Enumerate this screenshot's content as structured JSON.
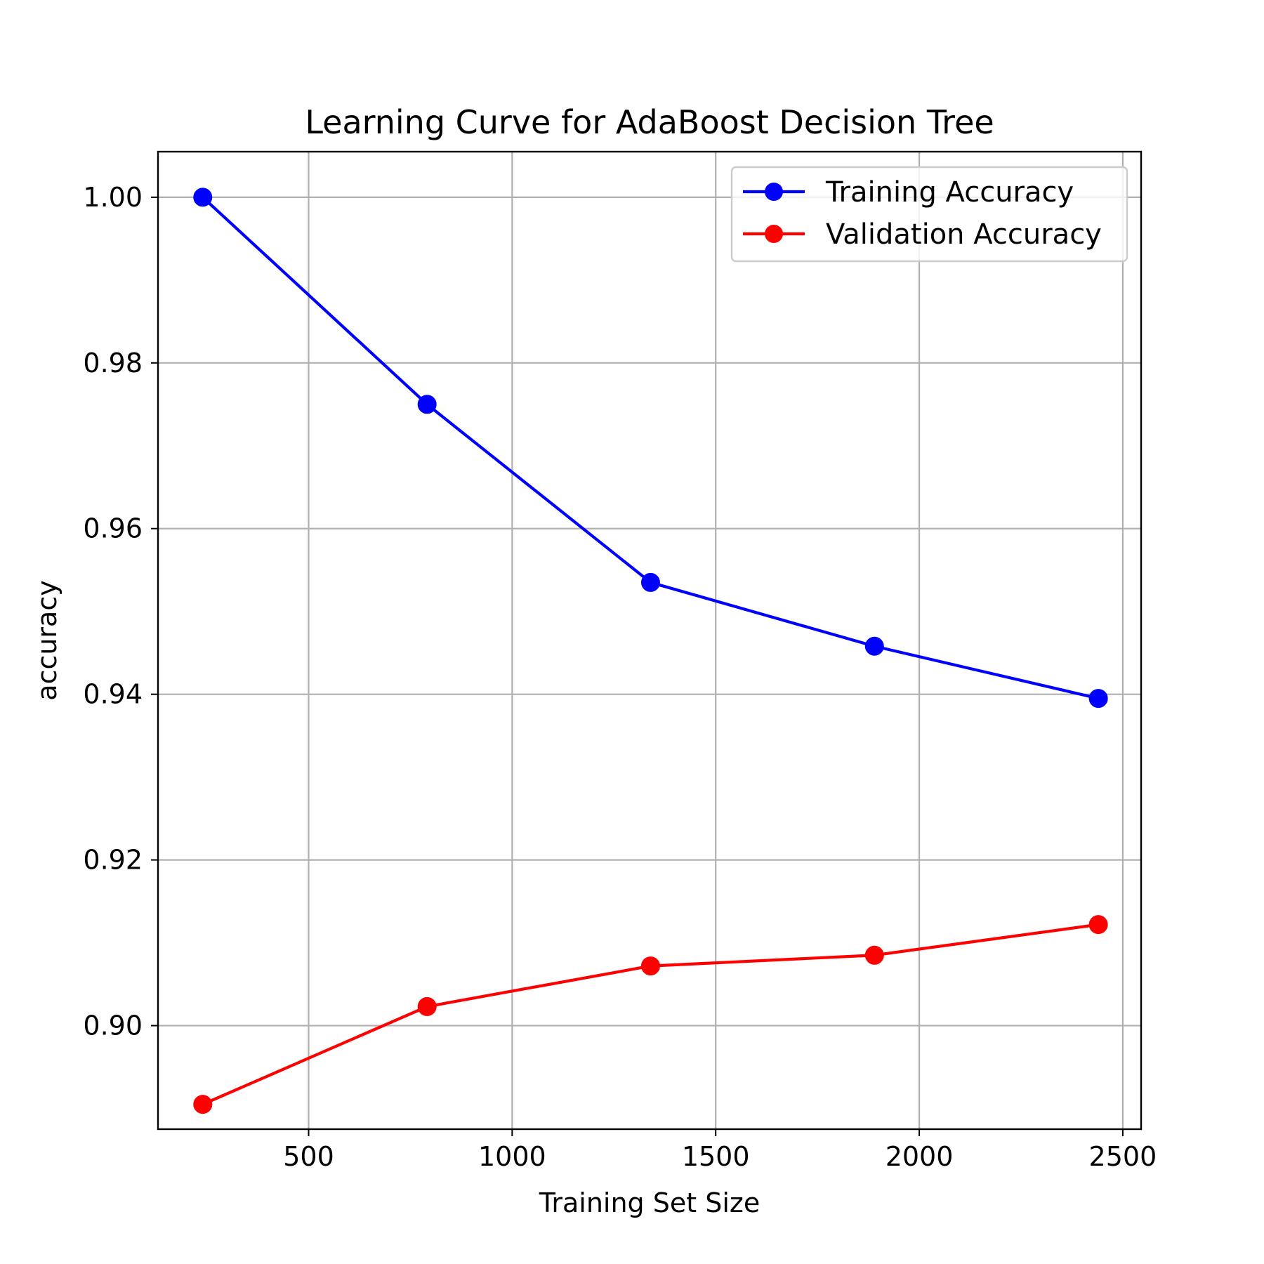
{
  "chart_data": {
    "type": "line",
    "title": "Learning Curve for AdaBoost Decision Tree",
    "xlabel": "Training Set Size",
    "ylabel": "accuracy",
    "xlim": [
      130,
      2545
    ],
    "ylim": [
      0.8875,
      1.0055
    ],
    "xticks": [
      500,
      1000,
      1500,
      2000,
      2500
    ],
    "xtick_labels": [
      "500",
      "1000",
      "1500",
      "2000",
      "2500"
    ],
    "yticks": [
      0.9,
      0.92,
      0.94,
      0.96,
      0.98,
      1.0
    ],
    "ytick_labels": [
      "0.90",
      "0.92",
      "0.94",
      "0.96",
      "0.98",
      "1.00"
    ],
    "grid": true,
    "legend_position": "upper right",
    "series": [
      {
        "name": "Training Accuracy",
        "color": "#0000ff",
        "marker": "circle",
        "x": [
          240,
          791,
          1340,
          1890,
          2440
        ],
        "y": [
          1.0,
          0.975,
          0.9535,
          0.9458,
          0.9395
        ]
      },
      {
        "name": "Validation Accuracy",
        "color": "#ff0000",
        "marker": "circle",
        "x": [
          240,
          791,
          1340,
          1890,
          2440
        ],
        "y": [
          0.8905,
          0.9023,
          0.9072,
          0.9085,
          0.9122
        ]
      }
    ]
  }
}
